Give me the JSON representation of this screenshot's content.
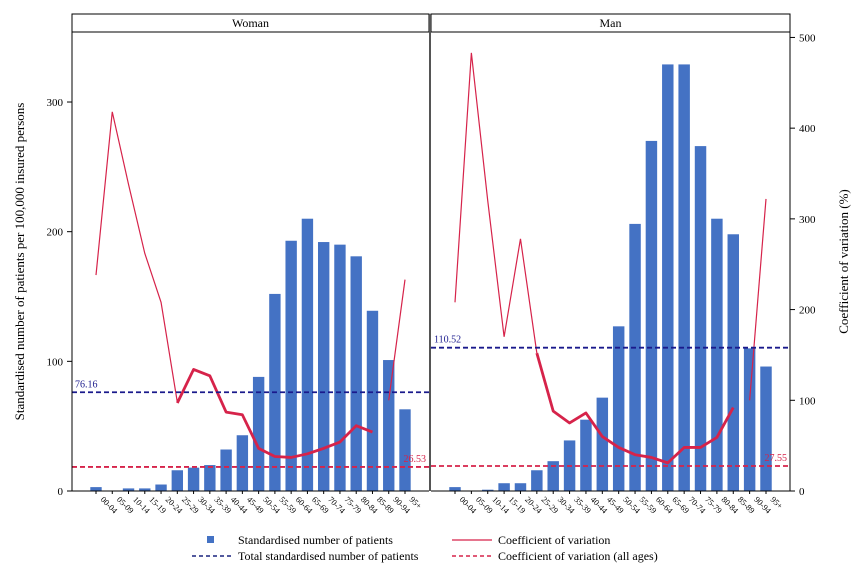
{
  "chart_data": {
    "type": "bar",
    "y_left_label": "Standardised number of patients per 100,000 insured persons",
    "y_right_label": "Coefficient of variation (%)",
    "y_left_ticks": [
      0,
      100,
      200,
      300
    ],
    "y_left_range": [
      0,
      354
    ],
    "y_right_ticks": [
      0,
      100,
      200,
      300,
      400,
      500
    ],
    "y_right_range": [
      0,
      506
    ],
    "categories": [
      "00-04",
      "05-09",
      "10-14",
      "15-19",
      "20-24",
      "25-29",
      "30-34",
      "35-39",
      "40-44",
      "45-49",
      "50-54",
      "55-59",
      "60-64",
      "65-69",
      "70-74",
      "75-79",
      "80-84",
      "85-89",
      "90-94",
      "95+"
    ],
    "panels": [
      {
        "title": "Woman",
        "patients": [
          3,
          0,
          2,
          2,
          5,
          16,
          18,
          20,
          32,
          43,
          88,
          152,
          193,
          210,
          192,
          190,
          181,
          139,
          101,
          63
        ],
        "cv_thin": [
          238,
          418,
          338,
          262,
          208,
          98,
          null,
          null,
          null,
          null,
          null,
          null,
          null,
          null,
          null,
          null,
          null,
          null,
          100,
          233
        ],
        "cv_thick": [
          null,
          null,
          null,
          null,
          null,
          97,
          134,
          127,
          87,
          84,
          47,
          38,
          37,
          41,
          47,
          54,
          72,
          65,
          null,
          null
        ],
        "total_line": 76.16,
        "total_label": "76.16",
        "cv_all_ages": 26.53,
        "cv_all_ages_label": "26.53"
      },
      {
        "title": "Man",
        "patients": [
          3,
          0,
          1,
          6,
          6,
          16,
          23,
          39,
          55,
          72,
          127,
          206,
          270,
          329,
          329,
          266,
          210,
          198,
          110,
          96
        ],
        "cv_thin": [
          208,
          483,
          320,
          170,
          278,
          152,
          null,
          null,
          null,
          null,
          null,
          null,
          null,
          null,
          null,
          null,
          null,
          null,
          100,
          322
        ],
        "cv_thick": [
          null,
          null,
          null,
          null,
          null,
          152,
          88,
          75,
          86,
          60,
          48,
          40,
          37,
          31,
          48,
          48,
          59,
          92,
          null,
          null
        ],
        "total_line": 110.52,
        "total_label": "110.52",
        "cv_all_ages": 27.55,
        "cv_all_ages_label": "27.55"
      }
    ],
    "legend": [
      {
        "key": "bar",
        "label": "Standardised number of patients",
        "color": "#4472C4"
      },
      {
        "key": "cv",
        "label": "Coefficient of variation",
        "color": "#D6234A"
      },
      {
        "key": "total",
        "label": "Total standardised number of patients",
        "color": "#1A237E"
      },
      {
        "key": "cvall",
        "label": "Coefficient of variation (all ages)",
        "color": "#D6234A"
      }
    ],
    "colors": {
      "bar": "#4472C4",
      "cv": "#D6234A",
      "total": "#1A1A8C",
      "cvall": "#D6234A"
    }
  }
}
